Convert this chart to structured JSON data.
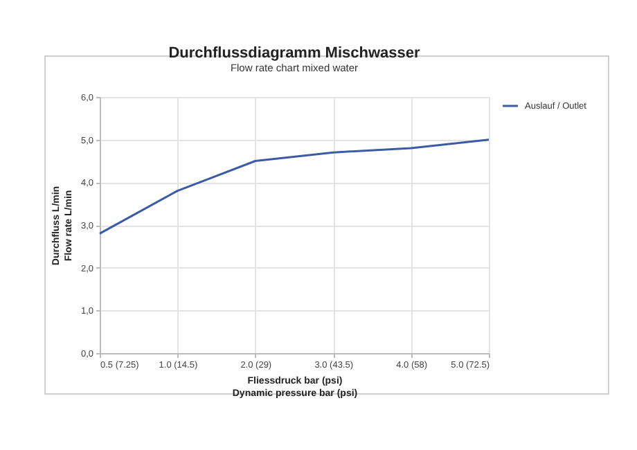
{
  "chart_data": {
    "type": "line",
    "title": "Durchflussdiagramm Mischwasser",
    "subtitle": "Flow rate chart mixed water",
    "xlabel": "Fliessdruck bar (psi)\nDynamic pressure bar (psi)",
    "ylabel": "Durchfluss L/min\nFlow rate L/min",
    "categories": [
      "0.5 (7.25)",
      "1.0 (14.5)",
      "2.0 (29)",
      "3.0 (43.5)",
      "4.0 (58)",
      "5.0 (72.5)"
    ],
    "series": [
      {
        "name": "Auslauf / Outlet",
        "color": "#3b5ba5",
        "values": [
          2.8,
          3.8,
          4.5,
          4.7,
          4.8,
          5.0
        ]
      }
    ],
    "ylim": [
      0,
      6
    ],
    "yticks": [
      {
        "value": 0,
        "label": "0,0"
      },
      {
        "value": 1,
        "label": "1,0"
      },
      {
        "value": 2,
        "label": "2,0"
      },
      {
        "value": 3,
        "label": "3,0"
      },
      {
        "value": 4,
        "label": "4,0"
      },
      {
        "value": 5,
        "label": "5,0"
      },
      {
        "value": 6,
        "label": "6,0"
      }
    ],
    "grid": true,
    "legend": "right"
  }
}
